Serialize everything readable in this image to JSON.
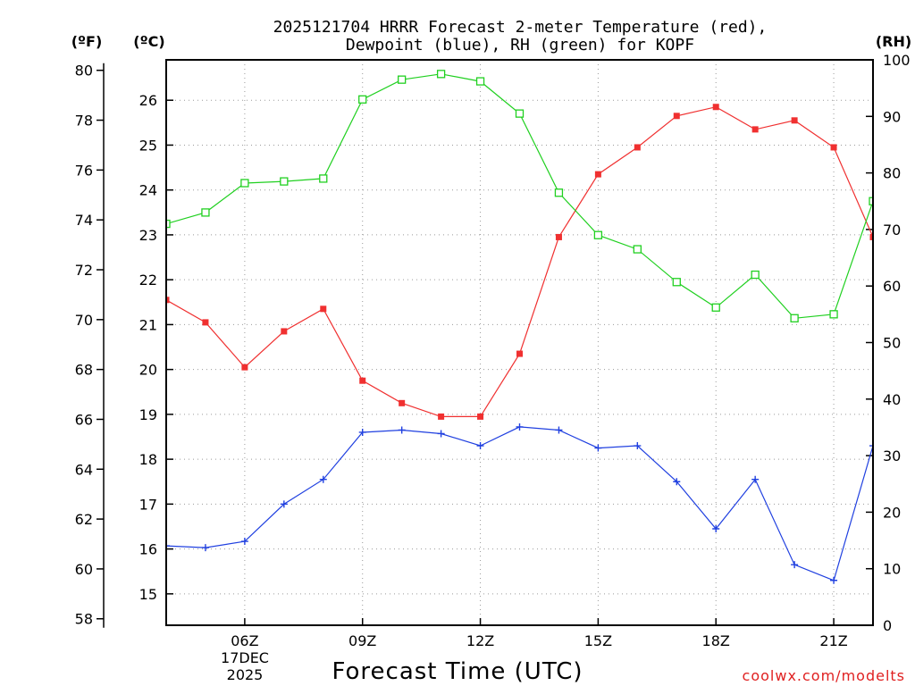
{
  "chart_data": {
    "type": "line",
    "title_line1": "2025121704 HRRR Forecast 2-meter Temperature (red),",
    "title_line2": "Dewpoint (blue), RH (green) for KOPF",
    "xlabel": "Forecast Time (UTC)",
    "left_outer_unit": "(ºF)",
    "left_inner_unit": "(ºC)",
    "right_unit": "(RH)",
    "credit": "coolwx.com/modelts",
    "date_label_line1": "17DEC",
    "date_label_line2": "2025",
    "x_hours": [
      4,
      5,
      6,
      7,
      8,
      9,
      10,
      11,
      12,
      13,
      14,
      15,
      16,
      17,
      18,
      19,
      20,
      21,
      22
    ],
    "xlim": [
      4,
      22
    ],
    "x_ticks": [
      {
        "hour": 6,
        "label": "06Z"
      },
      {
        "hour": 9,
        "label": "09Z"
      },
      {
        "hour": 12,
        "label": "12Z"
      },
      {
        "hour": 15,
        "label": "15Z"
      },
      {
        "hour": 18,
        "label": "18Z"
      },
      {
        "hour": 21,
        "label": "21Z"
      }
    ],
    "c_axis": {
      "lim": [
        14.3,
        26.9
      ],
      "ticks": [
        15,
        16,
        17,
        18,
        19,
        20,
        21,
        22,
        23,
        24,
        25,
        26
      ]
    },
    "f_axis": {
      "ticks": [
        58,
        60,
        62,
        64,
        66,
        68,
        70,
        72,
        74,
        76,
        78,
        80
      ]
    },
    "rh_axis": {
      "lim": [
        0,
        100
      ],
      "ticks": [
        0,
        10,
        20,
        30,
        40,
        50,
        60,
        70,
        80,
        90,
        100
      ]
    },
    "series": [
      {
        "name": "Temperature",
        "color": "#f03030",
        "marker": "filled-square",
        "axis": "c",
        "values": [
          21.55,
          21.05,
          20.05,
          20.85,
          21.35,
          19.75,
          19.25,
          18.95,
          18.95,
          20.35,
          22.95,
          24.35,
          24.95,
          25.65,
          25.85,
          25.35,
          25.55,
          24.95,
          22.95
        ]
      },
      {
        "name": "Dewpoint",
        "color": "#2040e0",
        "marker": "plus",
        "axis": "c",
        "values": [
          16.07,
          16.03,
          16.17,
          17.0,
          17.55,
          18.6,
          18.65,
          18.57,
          18.3,
          18.72,
          18.65,
          18.25,
          18.3,
          17.5,
          16.45,
          17.55,
          15.65,
          15.3,
          18.3
        ]
      },
      {
        "name": "RH",
        "color": "#20d020",
        "marker": "open-square",
        "axis": "rh",
        "values": [
          71,
          73,
          78.2,
          78.5,
          79,
          93,
          96.5,
          97.5,
          96.2,
          90.5,
          76.5,
          69,
          66.5,
          60.7,
          56.2,
          62,
          54.3,
          55,
          75
        ]
      }
    ]
  }
}
